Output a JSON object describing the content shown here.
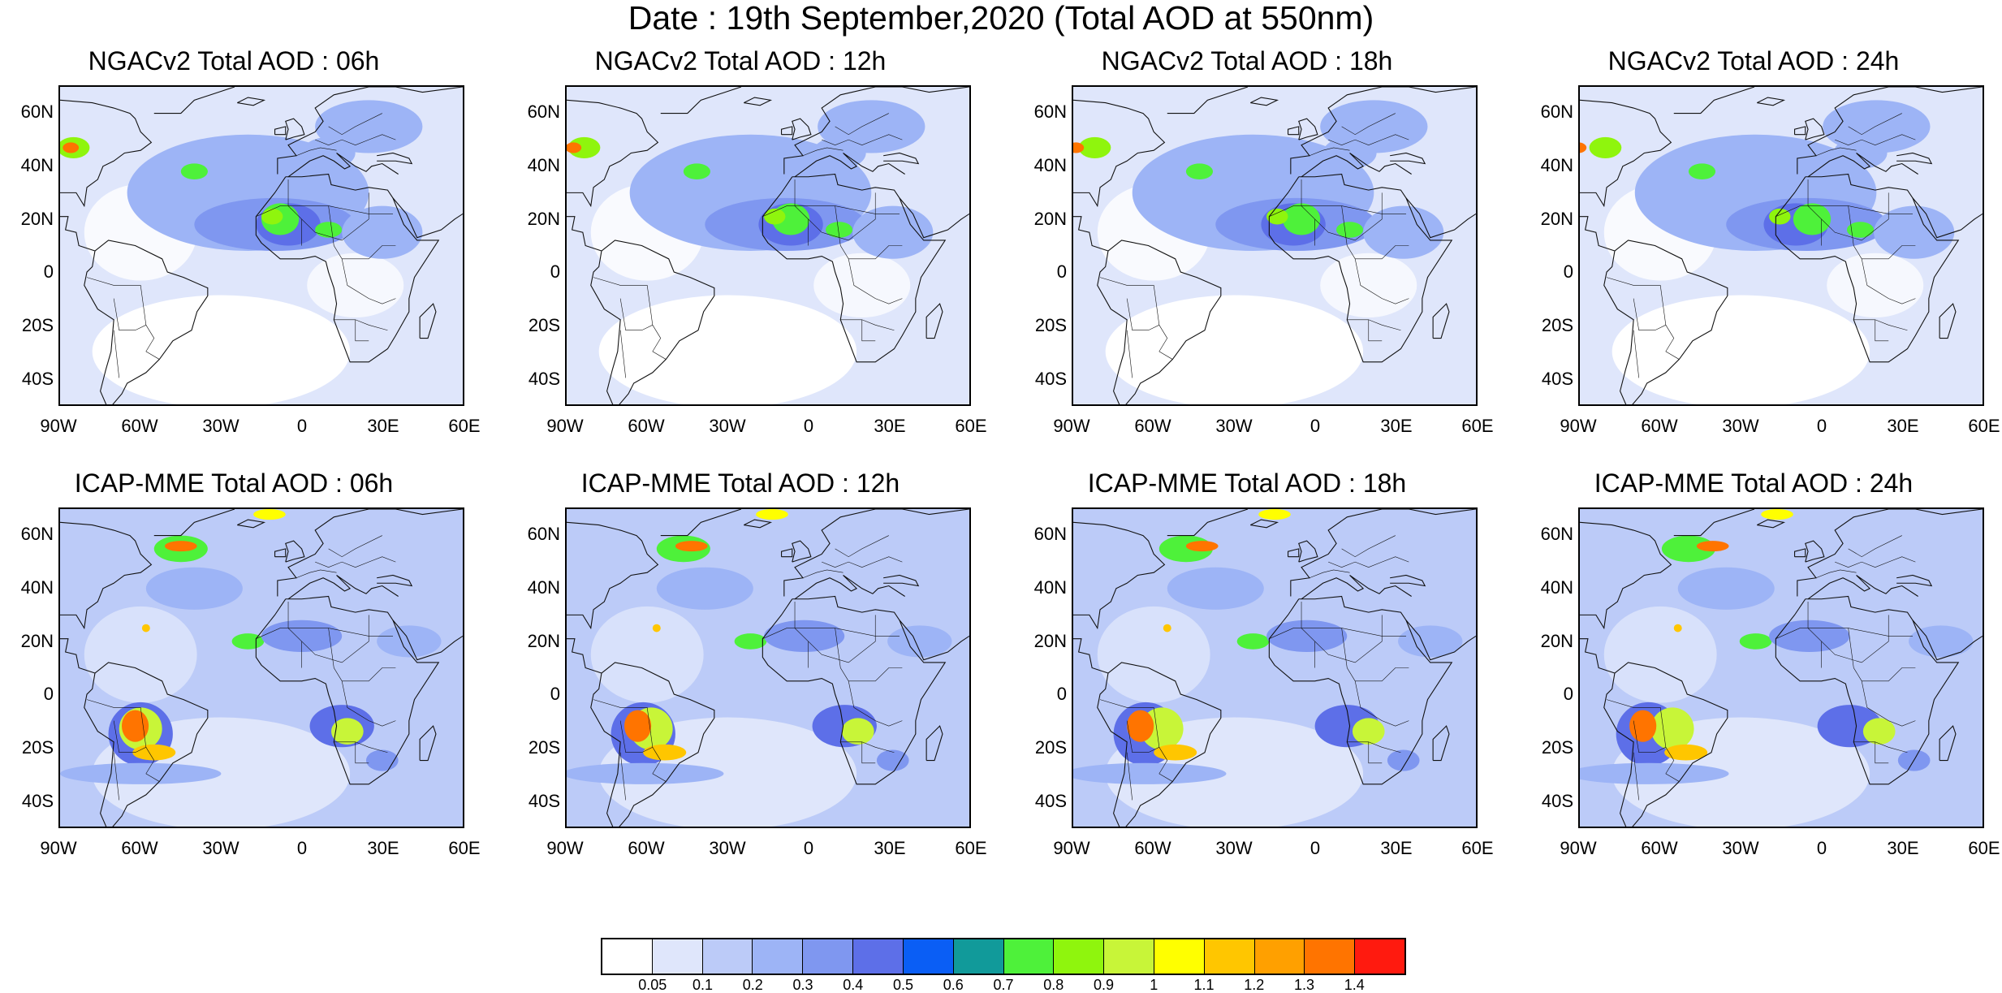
{
  "figure": {
    "title": "Date : 19th September,2020 (Total AOD at 550nm)"
  },
  "axes": {
    "lat_labels": [
      "60N",
      "40N",
      "20N",
      "0",
      "20S",
      "40S"
    ],
    "lon_labels": [
      "90W",
      "60W",
      "30W",
      "0",
      "30E",
      "60E"
    ]
  },
  "panels": [
    {
      "id": "ngac-06",
      "title": "NGACv2 Total AOD : 06h",
      "model": "NGACv2",
      "forecast_hour": "06h"
    },
    {
      "id": "ngac-12",
      "title": "NGACv2 Total AOD : 12h",
      "model": "NGACv2",
      "forecast_hour": "12h"
    },
    {
      "id": "ngac-18",
      "title": "NGACv2 Total AOD : 18h",
      "model": "NGACv2",
      "forecast_hour": "18h"
    },
    {
      "id": "ngac-24",
      "title": "NGACv2 Total AOD : 24h",
      "model": "NGACv2",
      "forecast_hour": "24h"
    },
    {
      "id": "icap-06",
      "title": "ICAP-MME Total AOD : 06h",
      "model": "ICAP-MME",
      "forecast_hour": "06h"
    },
    {
      "id": "icap-12",
      "title": "ICAP-MME Total AOD : 12h",
      "model": "ICAP-MME",
      "forecast_hour": "12h"
    },
    {
      "id": "icap-18",
      "title": "ICAP-MME Total AOD : 18h",
      "model": "ICAP-MME",
      "forecast_hour": "18h"
    },
    {
      "id": "icap-24",
      "title": "ICAP-MME Total AOD : 24h",
      "model": "ICAP-MME",
      "forecast_hour": "24h"
    }
  ],
  "colorbar": {
    "labels": [
      "0.05",
      "0.1",
      "0.2",
      "0.3",
      "0.4",
      "0.5",
      "0.6",
      "0.7",
      "0.8",
      "0.9",
      "1",
      "1.1",
      "1.2",
      "1.3",
      "1.4"
    ],
    "colors": [
      "#ffffff",
      "#dfe6fb",
      "#bccbf8",
      "#9db4f6",
      "#7f97f0",
      "#5d6fe8",
      "#0a5ef5",
      "#119a9a",
      "#4ef13a",
      "#8ff50d",
      "#c8f538",
      "#ffff00",
      "#ffc600",
      "#ffa000",
      "#ff7400",
      "#ff1a0f"
    ]
  }
}
